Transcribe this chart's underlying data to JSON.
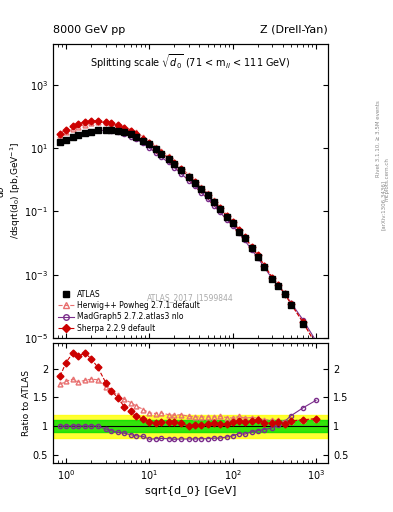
{
  "title_top_left": "8000 GeV pp",
  "title_top_right": "Z (Drell-Yan)",
  "main_title": "Splitting scale $\\sqrt{\\overline{d}_0}$ (71 < m$_{ll}$ < 111 GeV)",
  "xlabel": "sqrt{d_0} [GeV]",
  "ylabel_main": "d$\\sigma$\n/dsqrt(d$_0$) [pb,GeV$^{-1}$]",
  "ylabel_ratio": "Ratio to ATLAS",
  "watermark": "ATLAS_2017_I1599844",
  "rivet_text": "Rivet 3.1.10, ≥ 3.5M events",
  "arxiv_text": "[arXiv:1306.3436]",
  "mcplots_text": "mcplots.cern.ch",
  "xlim": [
    0.7,
    1400
  ],
  "ylim_main": [
    1e-05,
    20000.0
  ],
  "ylim_ratio": [
    0.35,
    2.45
  ],
  "ratio_yticks": [
    0.5,
    1.0,
    1.5,
    2.0
  ],
  "atlas_x": [
    0.85,
    1.0,
    1.2,
    1.4,
    1.7,
    2.0,
    2.4,
    3.0,
    3.5,
    4.2,
    5.0,
    6.0,
    7.0,
    8.5,
    10.0,
    12.0,
    14.0,
    17.0,
    20.0,
    24.0,
    30.0,
    35.0,
    42.0,
    50.0,
    60.0,
    70.0,
    85.0,
    100.0,
    120.0,
    140.0,
    170.0,
    200.0,
    240.0,
    300.0,
    350.0,
    420.0,
    500.0,
    700.0,
    1000.0
  ],
  "atlas_y": [
    15.0,
    18.0,
    22.0,
    26.0,
    30.0,
    33.0,
    36.0,
    38.0,
    37.0,
    35.0,
    32.0,
    27.0,
    23.0,
    17.0,
    13.0,
    9.0,
    6.5,
    4.5,
    3.1,
    2.0,
    1.2,
    0.8,
    0.5,
    0.32,
    0.19,
    0.12,
    0.068,
    0.042,
    0.023,
    0.014,
    0.0067,
    0.0037,
    0.0018,
    0.00075,
    0.00044,
    0.00024,
    0.00011,
    2.8e-05,
    5.5e-06
  ],
  "herwig_x": [
    0.85,
    1.0,
    1.2,
    1.4,
    1.7,
    2.0,
    2.4,
    3.0,
    3.5,
    4.2,
    5.0,
    6.0,
    7.0,
    8.5,
    10.0,
    12.0,
    14.0,
    17.0,
    20.0,
    24.0,
    30.0,
    35.0,
    42.0,
    50.0,
    60.0,
    70.0,
    85.0,
    100.0,
    120.0,
    140.0,
    170.0,
    200.0,
    240.0,
    300.0,
    350.0,
    420.0,
    500.0,
    700.0,
    1000.0
  ],
  "herwig_y": [
    26.0,
    32.0,
    40.0,
    46.0,
    54.0,
    60.0,
    65.0,
    64.0,
    60.0,
    54.0,
    47.0,
    38.0,
    31.0,
    22.0,
    16.0,
    11.0,
    8.0,
    5.4,
    3.7,
    2.4,
    1.4,
    0.93,
    0.58,
    0.37,
    0.22,
    0.14,
    0.078,
    0.048,
    0.027,
    0.016,
    0.0077,
    0.0042,
    0.002,
    0.00083,
    0.00049,
    0.00026,
    0.00012,
    3.1e-05,
    6.2e-06
  ],
  "herwig_ratio": [
    1.73,
    1.78,
    1.82,
    1.77,
    1.8,
    1.82,
    1.81,
    1.68,
    1.62,
    1.54,
    1.47,
    1.41,
    1.35,
    1.29,
    1.23,
    1.22,
    1.23,
    1.2,
    1.19,
    1.2,
    1.17,
    1.16,
    1.16,
    1.16,
    1.16,
    1.17,
    1.15,
    1.14,
    1.17,
    1.14,
    1.15,
    1.14,
    1.11,
    1.11,
    1.11,
    1.08,
    1.09,
    1.11,
    1.13
  ],
  "madgraph_x": [
    0.85,
    1.0,
    1.2,
    1.4,
    1.7,
    2.0,
    2.4,
    3.0,
    3.5,
    4.2,
    5.0,
    6.0,
    7.0,
    8.5,
    10.0,
    12.0,
    14.0,
    17.0,
    20.0,
    24.0,
    30.0,
    35.0,
    42.0,
    50.0,
    60.0,
    70.0,
    85.0,
    100.0,
    120.0,
    140.0,
    170.0,
    200.0,
    240.0,
    300.0,
    350.0,
    420.0,
    500.0,
    700.0,
    1000.0
  ],
  "madgraph_y": [
    15.0,
    18.0,
    22.0,
    26.0,
    30.0,
    33.0,
    36.0,
    36.0,
    34.0,
    31.0,
    28.0,
    23.0,
    19.0,
    14.0,
    10.0,
    7.0,
    5.1,
    3.5,
    2.4,
    1.55,
    0.93,
    0.62,
    0.39,
    0.25,
    0.15,
    0.095,
    0.055,
    0.035,
    0.02,
    0.012,
    0.006,
    0.0034,
    0.0017,
    0.00073,
    0.00045,
    0.00026,
    0.00013,
    3.7e-05,
    8e-06
  ],
  "madgraph_ratio": [
    1.0,
    1.0,
    1.0,
    1.0,
    1.0,
    1.0,
    1.0,
    0.95,
    0.92,
    0.89,
    0.875,
    0.85,
    0.83,
    0.82,
    0.77,
    0.78,
    0.785,
    0.78,
    0.77,
    0.775,
    0.775,
    0.775,
    0.78,
    0.78,
    0.79,
    0.79,
    0.81,
    0.83,
    0.87,
    0.86,
    0.9,
    0.92,
    0.94,
    0.97,
    1.02,
    1.08,
    1.18,
    1.32,
    1.45
  ],
  "sherpa_x": [
    0.85,
    1.0,
    1.2,
    1.4,
    1.7,
    2.0,
    2.4,
    3.0,
    3.5,
    4.2,
    5.0,
    6.0,
    7.0,
    8.5,
    10.0,
    12.0,
    14.0,
    17.0,
    20.0,
    24.0,
    30.0,
    35.0,
    42.0,
    50.0,
    60.0,
    70.0,
    85.0,
    100.0,
    120.0,
    140.0,
    170.0,
    200.0,
    240.0,
    300.0,
    350.0,
    420.0,
    500.0,
    700.0,
    1000.0
  ],
  "sherpa_y": [
    28.0,
    38.0,
    50.0,
    58.0,
    68.0,
    72.0,
    73.0,
    67.0,
    60.0,
    52.0,
    43.0,
    34.0,
    27.0,
    19.0,
    14.0,
    9.5,
    7.0,
    4.8,
    3.3,
    2.1,
    1.2,
    0.82,
    0.51,
    0.33,
    0.2,
    0.125,
    0.071,
    0.045,
    0.025,
    0.015,
    0.0073,
    0.0041,
    0.0019,
    0.00079,
    0.00047,
    0.00025,
    0.00012,
    3.1e-05,
    6.2e-06
  ],
  "sherpa_ratio": [
    1.87,
    2.11,
    2.27,
    2.23,
    2.27,
    2.18,
    2.03,
    1.76,
    1.62,
    1.49,
    1.34,
    1.26,
    1.17,
    1.12,
    1.08,
    1.056,
    1.077,
    1.067,
    1.065,
    1.05,
    1.0,
    1.025,
    1.02,
    1.031,
    1.053,
    1.042,
    1.044,
    1.071,
    1.087,
    1.071,
    1.09,
    1.11,
    1.06,
    1.053,
    1.068,
    1.042,
    1.09,
    1.11,
    1.13
  ],
  "atlas_color": "#000000",
  "herwig_color": "#e87070",
  "madgraph_color": "#7b2d8b",
  "sherpa_color": "#cc0000",
  "green_band_low": 0.9,
  "green_band_high": 1.1,
  "yellow_band_low": 0.8,
  "yellow_band_high": 1.2,
  "band_xstart": 3.0
}
